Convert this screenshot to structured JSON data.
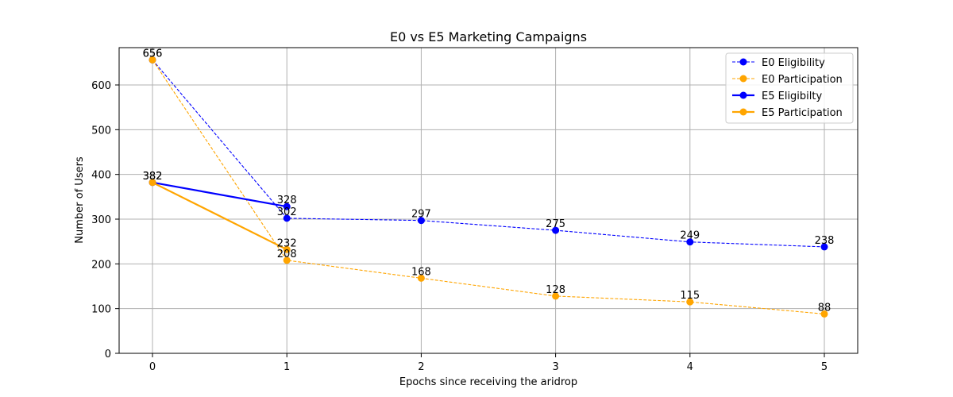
{
  "chart_data": {
    "type": "line",
    "title": "E0 vs E5 Marketing Campaigns",
    "xlabel": "Epochs since receiving the aridrop",
    "ylabel": "Number of Users",
    "x": [
      0,
      1,
      2,
      3,
      4,
      5
    ],
    "xticks": [
      "0",
      "1",
      "2",
      "3",
      "4",
      "5"
    ],
    "yticks": [
      "0",
      "100",
      "200",
      "300",
      "400",
      "500",
      "600"
    ],
    "ylim": [
      0,
      683
    ],
    "xlim": [
      -0.25,
      5.25
    ],
    "grid": true,
    "legend_position": "upper right",
    "series": [
      {
        "name": "E0 Eligibility",
        "x": [
          0,
          1,
          2,
          3,
          4,
          5
        ],
        "values": [
          656,
          302,
          297,
          275,
          249,
          238
        ],
        "color": "#0000ff",
        "style": "dashed"
      },
      {
        "name": "E0 Participation",
        "x": [
          0,
          1,
          2,
          3,
          4,
          5
        ],
        "values": [
          656,
          208,
          168,
          128,
          115,
          88
        ],
        "color": "#ffa500",
        "style": "dashed"
      },
      {
        "name": "E5 Eligibilty",
        "x": [
          0,
          1
        ],
        "values": [
          382,
          328
        ],
        "color": "#0000ff",
        "style": "solid"
      },
      {
        "name": "E5 Participation",
        "x": [
          0,
          1
        ],
        "values": [
          382,
          232
        ],
        "color": "#ffa500",
        "style": "solid"
      }
    ]
  }
}
